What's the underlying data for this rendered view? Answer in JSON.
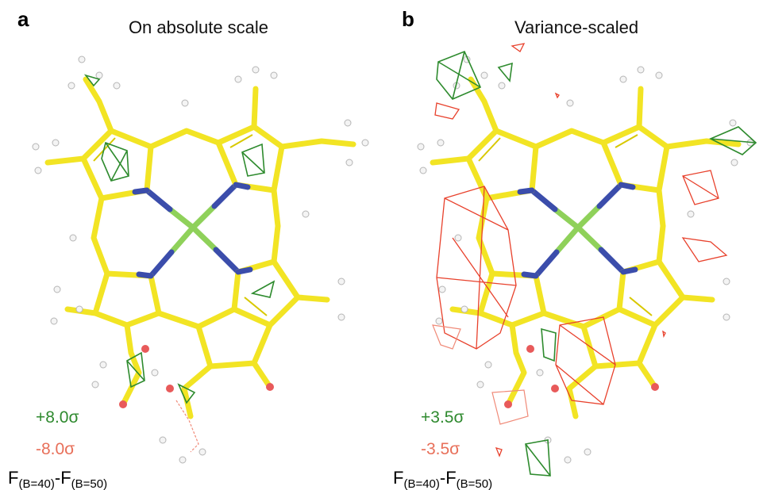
{
  "panels": [
    {
      "label": "a",
      "title": "On absolute scale",
      "legend": {
        "positive": "+8.0σ",
        "negative": "-8.0σ"
      },
      "formula": {
        "f1": "F",
        "sub1": "(B=40)",
        "f2": "-F",
        "sub2": "(B=50)"
      }
    },
    {
      "label": "b",
      "title": "Variance-scaled",
      "legend": {
        "positive": "+3.5σ",
        "negative": "-3.5σ"
      },
      "formula": {
        "f1": "F",
        "sub1": "(B=40)",
        "f2": "-F",
        "sub2": "(B=50)"
      }
    }
  ]
}
